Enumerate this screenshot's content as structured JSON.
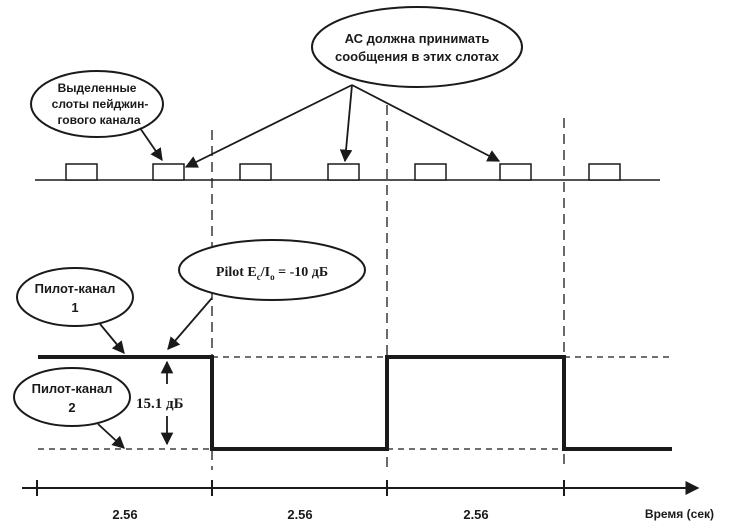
{
  "callouts": {
    "as_line1": "АС должна принимать",
    "as_line2": "сообщения в этих слотах",
    "paging_line1": "Выделенные",
    "paging_line2": "слоты пейджин-",
    "paging_line3": "гового канала",
    "pilot_ratio_main": "Pilot E",
    "pilot_ratio_sub1": "c",
    "pilot_ratio_mid": "/I",
    "pilot_ratio_sub2": "o",
    "pilot_ratio_value": " = -10 дБ",
    "pilot1_line1": "Пилот-канал",
    "pilot1_line2": "1",
    "pilot2_line1": "Пилот-канал",
    "pilot2_line2": "2"
  },
  "level_difference": "15.1 дБ",
  "time_axis": {
    "segments": [
      "2.56",
      "2.56",
      "2.56"
    ],
    "label": "Время (сек)"
  },
  "colors": {
    "ink": "#1a1a1a",
    "background": "#ffffff"
  }
}
